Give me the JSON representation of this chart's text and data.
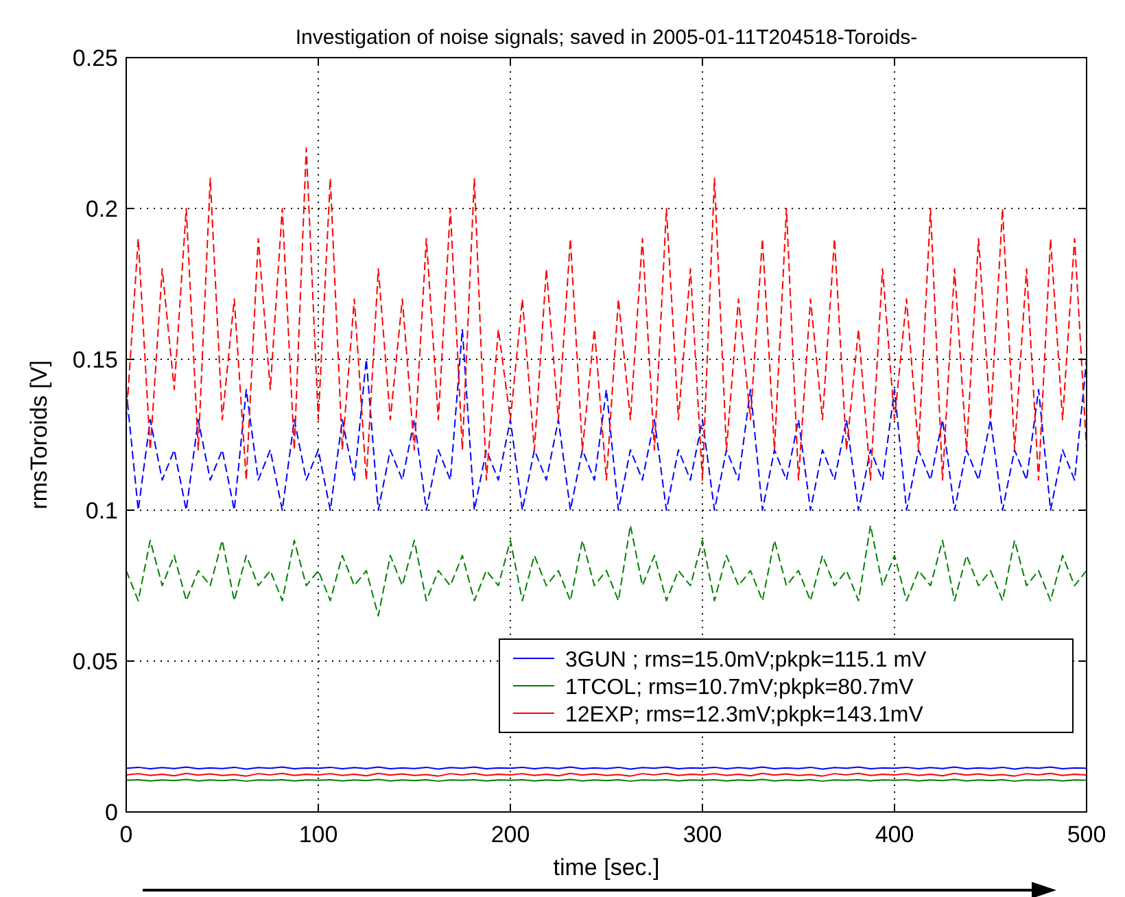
{
  "chart_data": {
    "type": "line",
    "title": "Investigation of noise signals; saved in 2005-01-11T204518-Toroids-",
    "xlabel": "time [sec.]",
    "ylabel": "rmsToroids [V]",
    "x": [
      0,
      6.25,
      12.5,
      18.75,
      25,
      31.25,
      37.5,
      43.75,
      50,
      56.25,
      62.5,
      68.75,
      75,
      81.25,
      87.5,
      93.75,
      100,
      106.25,
      112.5,
      118.75,
      125,
      131.25,
      137.5,
      143.75,
      150,
      156.25,
      162.5,
      168.75,
      175,
      181.25,
      187.5,
      193.75,
      200,
      206.25,
      212.5,
      218.75,
      225,
      231.25,
      237.5,
      243.75,
      250,
      256.25,
      262.5,
      268.75,
      275,
      281.25,
      287.5,
      293.75,
      300,
      306.25,
      312.5,
      318.75,
      325,
      331.25,
      337.5,
      343.75,
      350,
      356.25,
      362.5,
      368.75,
      375,
      381.25,
      387.5,
      393.75,
      400,
      406.25,
      412.5,
      418.75,
      425,
      431.25,
      437.5,
      443.75,
      450,
      456.25,
      462.5,
      468.75,
      475,
      481.25,
      487.5,
      493.75,
      500
    ],
    "xlim": [
      0,
      500
    ],
    "xticks": [
      0,
      100,
      200,
      300,
      400,
      500
    ],
    "ylim": [
      0,
      0.25
    ],
    "yticks": [
      0,
      0.05,
      0.1,
      0.15,
      0.2,
      0.25
    ],
    "grid": true,
    "legend": "bottom right",
    "series": [
      {
        "name": "3GUN ; rms=15.0mV;pkpk=115.1 mV",
        "color": "#0000ff",
        "line_style": "dashed",
        "values": [
          0.14,
          0.1,
          0.13,
          0.11,
          0.12,
          0.1,
          0.13,
          0.11,
          0.12,
          0.1,
          0.14,
          0.11,
          0.12,
          0.1,
          0.13,
          0.11,
          0.12,
          0.1,
          0.13,
          0.11,
          0.15,
          0.1,
          0.12,
          0.11,
          0.13,
          0.1,
          0.12,
          0.11,
          0.16,
          0.1,
          0.12,
          0.11,
          0.13,
          0.1,
          0.12,
          0.11,
          0.13,
          0.1,
          0.12,
          0.11,
          0.14,
          0.1,
          0.12,
          0.11,
          0.13,
          0.1,
          0.12,
          0.11,
          0.13,
          0.1,
          0.12,
          0.11,
          0.14,
          0.1,
          0.12,
          0.11,
          0.13,
          0.1,
          0.12,
          0.11,
          0.13,
          0.1,
          0.12,
          0.11,
          0.14,
          0.1,
          0.12,
          0.11,
          0.13,
          0.1,
          0.12,
          0.11,
          0.13,
          0.1,
          0.12,
          0.11,
          0.14,
          0.1,
          0.12,
          0.11,
          0.15
        ]
      },
      {
        "name": "1TCOL; rms=10.7mV;pkpk=80.7mV",
        "color": "#008000",
        "line_style": "dashed",
        "values": [
          0.08,
          0.07,
          0.09,
          0.075,
          0.085,
          0.07,
          0.08,
          0.075,
          0.09,
          0.07,
          0.085,
          0.075,
          0.08,
          0.07,
          0.09,
          0.075,
          0.08,
          0.07,
          0.085,
          0.075,
          0.08,
          0.065,
          0.085,
          0.075,
          0.09,
          0.07,
          0.08,
          0.075,
          0.085,
          0.07,
          0.08,
          0.075,
          0.09,
          0.07,
          0.085,
          0.075,
          0.08,
          0.07,
          0.09,
          0.075,
          0.08,
          0.07,
          0.095,
          0.075,
          0.085,
          0.07,
          0.08,
          0.075,
          0.09,
          0.07,
          0.085,
          0.075,
          0.08,
          0.07,
          0.09,
          0.075,
          0.08,
          0.07,
          0.085,
          0.075,
          0.08,
          0.07,
          0.095,
          0.075,
          0.085,
          0.07,
          0.08,
          0.075,
          0.09,
          0.07,
          0.085,
          0.075,
          0.08,
          0.07,
          0.09,
          0.075,
          0.08,
          0.07,
          0.085,
          0.075,
          0.08
        ]
      },
      {
        "name": "12EXP; rms=12.3mV;pkpk=143.1mV",
        "color": "#ff0000",
        "line_style": "dashed",
        "values": [
          0.13,
          0.19,
          0.12,
          0.18,
          0.14,
          0.2,
          0.12,
          0.21,
          0.13,
          0.17,
          0.11,
          0.19,
          0.14,
          0.2,
          0.12,
          0.22,
          0.13,
          0.21,
          0.12,
          0.17,
          0.11,
          0.18,
          0.13,
          0.17,
          0.12,
          0.19,
          0.13,
          0.2,
          0.12,
          0.21,
          0.11,
          0.16,
          0.13,
          0.17,
          0.12,
          0.18,
          0.13,
          0.19,
          0.12,
          0.16,
          0.11,
          0.17,
          0.13,
          0.19,
          0.12,
          0.2,
          0.13,
          0.18,
          0.11,
          0.21,
          0.12,
          0.17,
          0.13,
          0.19,
          0.12,
          0.2,
          0.11,
          0.17,
          0.13,
          0.19,
          0.12,
          0.16,
          0.11,
          0.18,
          0.13,
          0.17,
          0.12,
          0.2,
          0.11,
          0.18,
          0.12,
          0.19,
          0.13,
          0.2,
          0.12,
          0.18,
          0.11,
          0.19,
          0.13,
          0.19,
          0.12
        ]
      },
      {
        "color": "#0000ff",
        "line_style": "solid",
        "values": [
          0.0145,
          0.0148,
          0.0143,
          0.0147,
          0.0144,
          0.0149,
          0.0143,
          0.0146,
          0.0144,
          0.0148,
          0.0142,
          0.0147,
          0.0145,
          0.0149,
          0.0143,
          0.0146,
          0.0145,
          0.0148,
          0.0143,
          0.0147,
          0.0144,
          0.0149,
          0.0143,
          0.0146,
          0.0144,
          0.0148,
          0.0142,
          0.0147,
          0.0145,
          0.0149,
          0.0143,
          0.0146,
          0.0145,
          0.0148,
          0.0143,
          0.0147,
          0.0144,
          0.0149,
          0.0143,
          0.0146,
          0.0144,
          0.0148,
          0.0142,
          0.0147,
          0.0145,
          0.0149,
          0.0143,
          0.0146,
          0.0145,
          0.0148,
          0.0143,
          0.0147,
          0.0144,
          0.0149,
          0.0143,
          0.0146,
          0.0144,
          0.0148,
          0.0142,
          0.0147,
          0.0145,
          0.0149,
          0.0143,
          0.0146,
          0.0145,
          0.0148,
          0.0143,
          0.0147,
          0.0144,
          0.0149,
          0.0143,
          0.0146,
          0.0144,
          0.0148,
          0.0142,
          0.0147,
          0.0145,
          0.0149,
          0.0143,
          0.0146,
          0.0145
        ]
      },
      {
        "color": "#ff0000",
        "line_style": "solid",
        "values": [
          0.0123,
          0.0127,
          0.0121,
          0.0125,
          0.012,
          0.0128,
          0.0122,
          0.0126,
          0.0121,
          0.0124,
          0.0119,
          0.0127,
          0.0123,
          0.0128,
          0.0121,
          0.0125,
          0.0123,
          0.0127,
          0.0121,
          0.0125,
          0.012,
          0.0128,
          0.0122,
          0.0126,
          0.0121,
          0.0124,
          0.0119,
          0.0127,
          0.0123,
          0.0128,
          0.0121,
          0.0125,
          0.0123,
          0.0127,
          0.0121,
          0.0125,
          0.012,
          0.0128,
          0.0122,
          0.0126,
          0.0121,
          0.0124,
          0.0119,
          0.0127,
          0.0123,
          0.0128,
          0.0121,
          0.0125,
          0.0123,
          0.0127,
          0.0121,
          0.0125,
          0.012,
          0.0128,
          0.0122,
          0.0126,
          0.0121,
          0.0124,
          0.0119,
          0.0127,
          0.0123,
          0.0128,
          0.0121,
          0.0125,
          0.0123,
          0.0127,
          0.0121,
          0.0125,
          0.012,
          0.0128,
          0.0122,
          0.0126,
          0.0121,
          0.0124,
          0.0119,
          0.0127,
          0.0123,
          0.0128,
          0.0121,
          0.0125,
          0.0123
        ]
      },
      {
        "color": "#008000",
        "line_style": "solid",
        "values": [
          0.0105,
          0.0107,
          0.0103,
          0.0106,
          0.0104,
          0.0108,
          0.0103,
          0.0106,
          0.0104,
          0.0107,
          0.0102,
          0.0106,
          0.0105,
          0.0107,
          0.0103,
          0.0106,
          0.0105,
          0.0107,
          0.0103,
          0.0106,
          0.0104,
          0.0108,
          0.0103,
          0.0106,
          0.0104,
          0.0107,
          0.0102,
          0.0106,
          0.0105,
          0.0107,
          0.0103,
          0.0106,
          0.0105,
          0.0107,
          0.0103,
          0.0106,
          0.0104,
          0.0108,
          0.0103,
          0.0106,
          0.0104,
          0.0107,
          0.0102,
          0.0106,
          0.0105,
          0.0107,
          0.0103,
          0.0106,
          0.0105,
          0.0107,
          0.0103,
          0.0106,
          0.0104,
          0.0108,
          0.0103,
          0.0106,
          0.0104,
          0.0107,
          0.0102,
          0.0106,
          0.0105,
          0.0107,
          0.0103,
          0.0106,
          0.0105,
          0.0107,
          0.0103,
          0.0106,
          0.0104,
          0.0108,
          0.0103,
          0.0106,
          0.0104,
          0.0107,
          0.0102,
          0.0106,
          0.0105,
          0.0107,
          0.0103,
          0.0106,
          0.0105
        ]
      }
    ]
  }
}
